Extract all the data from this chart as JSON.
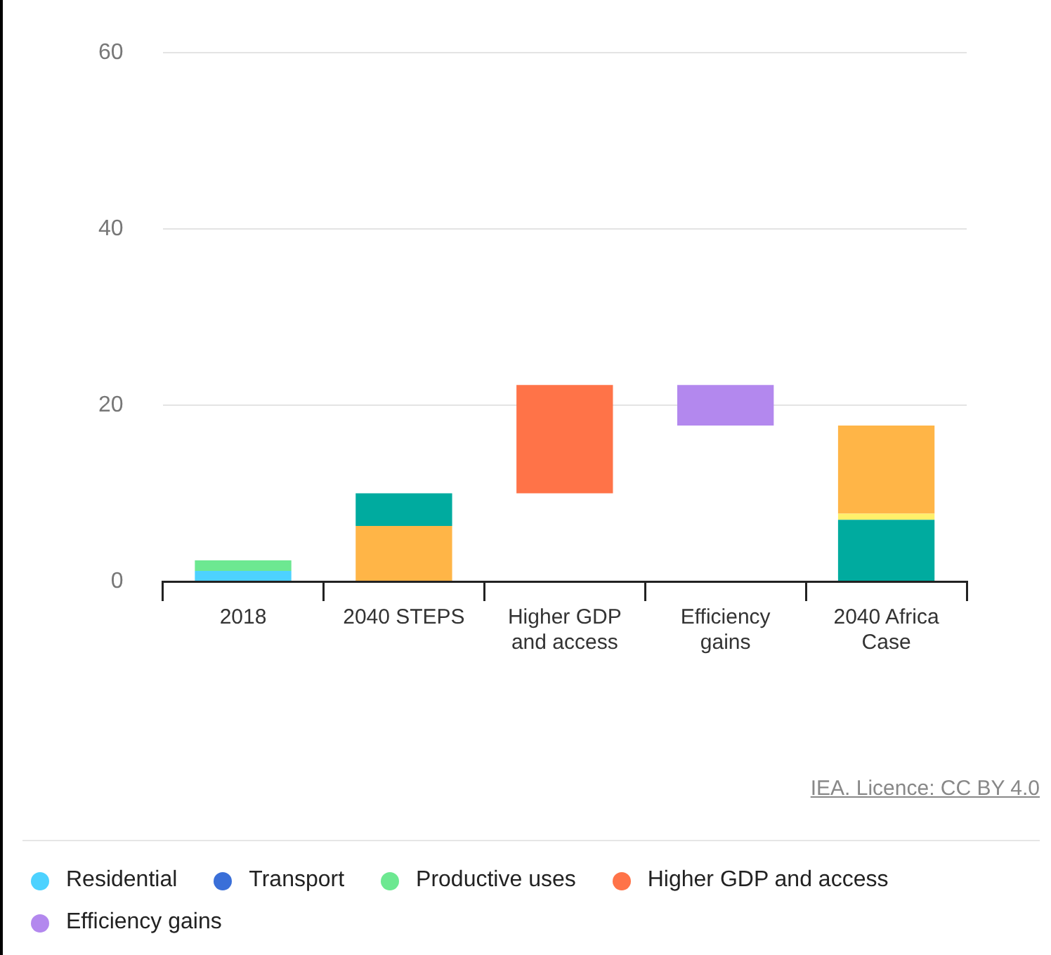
{
  "chart_data": {
    "type": "bar",
    "stacked": true,
    "categories": [
      "2018",
      "2040 STEPS",
      "Higher GDP and access",
      "Efficiency gains",
      "2040 Africa Case"
    ],
    "series": [
      {
        "name": "Residential",
        "color": "#4dd2ff",
        "values": [
          1.2,
          null,
          null,
          null,
          null
        ]
      },
      {
        "name": "Transport",
        "color": "#3a6fd8",
        "values": [
          null,
          null,
          null,
          null,
          null
        ]
      },
      {
        "name": "Productive uses",
        "color": "#6de891",
        "values": [
          1.2,
          null,
          null,
          null,
          null
        ]
      },
      {
        "color": "#00ab9f",
        "values": [
          null,
          null,
          null,
          null,
          7.0
        ]
      },
      {
        "color": "#fff06a",
        "values": [
          null,
          null,
          null,
          null,
          0.7
        ]
      },
      {
        "color": "#ffb547",
        "values": [
          null,
          6.3,
          null,
          null,
          10.0
        ]
      },
      {
        "color": "#00ab9f",
        "values": [
          null,
          3.7,
          null,
          null,
          null
        ]
      },
      {
        "name": "Higher GDP and access",
        "color": "#ff7348",
        "values": [
          null,
          null,
          12.3,
          null,
          null
        ],
        "base": [
          null,
          null,
          10,
          null,
          null
        ]
      },
      {
        "name": "Efficiency gains",
        "color": "#b388ee",
        "values": [
          null,
          null,
          null,
          4.6,
          null
        ],
        "base": [
          null,
          null,
          null,
          17.7,
          null
        ]
      }
    ],
    "ylim": [
      0,
      60
    ],
    "yticks": [
      0,
      20,
      40,
      60
    ],
    "grid": "y",
    "legend": "bottom",
    "annotations": [
      "IEA. Licence: CC BY 4.0"
    ]
  }
}
